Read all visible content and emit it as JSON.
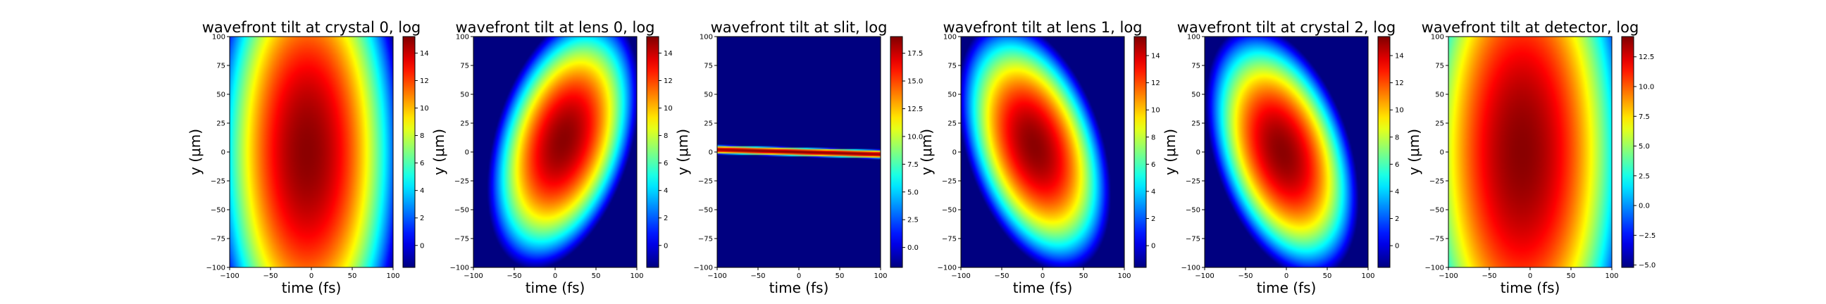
{
  "figure": {
    "colormap": "jet",
    "panels": [
      {
        "title": "wavefront tilt at crystal 0, log",
        "xlabel": "time (fs)",
        "ylabel": "y (μm)",
        "xticks": [
          "−100",
          "−50",
          "0",
          "50",
          "100"
        ],
        "yticks": [
          "100",
          "75",
          "50",
          "25",
          "0",
          "−25",
          "−50",
          "−75",
          "−100"
        ],
        "cb_range": [
          -1.6,
          15.2
        ],
        "cb_ticks": [
          "0",
          "2",
          "4",
          "6",
          "8",
          "10",
          "12",
          "14"
        ]
      },
      {
        "title": "wavefront tilt at lens 0, log",
        "xlabel": "time (fs)",
        "ylabel": "y (μm)",
        "xticks": [
          "−100",
          "−50",
          "0",
          "50",
          "100"
        ],
        "yticks": [
          "100",
          "75",
          "50",
          "25",
          "0",
          "−25",
          "−50",
          "−75",
          "−100"
        ],
        "cb_range": [
          -1.6,
          15.2
        ],
        "cb_ticks": [
          "0",
          "2",
          "4",
          "6",
          "8",
          "10",
          "12",
          "14"
        ]
      },
      {
        "title": "wavefront tilt at slit, log",
        "xlabel": "time (fs)",
        "ylabel": "y (μm)",
        "xticks": [
          "−100",
          "−50",
          "0",
          "50",
          "100"
        ],
        "yticks": [
          "100",
          "75",
          "50",
          "25",
          "0",
          "−25",
          "−50",
          "−75",
          "−100"
        ],
        "cb_range": [
          -1.8,
          19.0
        ],
        "cb_ticks": [
          "0.0",
          "2.5",
          "5.0",
          "7.5",
          "10.0",
          "12.5",
          "15.0",
          "17.5"
        ]
      },
      {
        "title": "wavefront tilt at lens 1, log",
        "xlabel": "time (fs)",
        "ylabel": "y (μm)",
        "xticks": [
          "−100",
          "−50",
          "0",
          "50",
          "100"
        ],
        "yticks": [
          "100",
          "75",
          "50",
          "25",
          "0",
          "−25",
          "−50",
          "−75",
          "−100"
        ],
        "cb_range": [
          -1.6,
          15.4
        ],
        "cb_ticks": [
          "0",
          "2",
          "4",
          "6",
          "8",
          "10",
          "12",
          "14"
        ]
      },
      {
        "title": "wavefront tilt at crystal 2, log",
        "xlabel": "time (fs)",
        "ylabel": "y (μm)",
        "xticks": [
          "−100",
          "−50",
          "0",
          "50",
          "100"
        ],
        "yticks": [
          "100",
          "75",
          "50",
          "25",
          "0",
          "−25",
          "−50",
          "−75",
          "−100"
        ],
        "cb_range": [
          -1.6,
          15.4
        ],
        "cb_ticks": [
          "0",
          "2",
          "4",
          "6",
          "8",
          "10",
          "12",
          "14"
        ]
      },
      {
        "title": "wavefront tilt at detector, log",
        "xlabel": "time (fs)",
        "ylabel": "y (μm)",
        "xticks": [
          "−100",
          "−50",
          "0",
          "50",
          "100"
        ],
        "yticks": [
          "100",
          "75",
          "50",
          "25",
          "0",
          "−25",
          "−50",
          "−75",
          "−100"
        ],
        "cb_range": [
          -5.2,
          14.2
        ],
        "cb_ticks": [
          "−5.0",
          "−2.5",
          "0.0",
          "2.5",
          "5.0",
          "7.5",
          "10.0",
          "12.5"
        ]
      }
    ]
  },
  "chart_data": [
    {
      "type": "heatmap",
      "title": "wavefront tilt at crystal 0, log",
      "xlabel": "time (fs)",
      "ylabel": "y (μm)",
      "xlim": [
        -100,
        100
      ],
      "ylim": [
        -100,
        100
      ],
      "colorbar_range": [
        -1.6,
        15.2
      ],
      "field": {
        "peak": 15.0,
        "center": [
          -5,
          0
        ],
        "sigma_t": 72,
        "sigma_y": 130,
        "tilt": 0.0
      }
    },
    {
      "type": "heatmap",
      "title": "wavefront tilt at lens 0, log",
      "xlabel": "time (fs)",
      "ylabel": "y (μm)",
      "xticks": null,
      "xlim": [
        -100,
        100
      ],
      "ylim": [
        -100,
        100
      ],
      "colorbar_range": [
        -1.6,
        15.2
      ],
      "field": {
        "peak": 15.0,
        "center": [
          10,
          10
        ],
        "sigma_t": 56,
        "sigma_y": 62,
        "tilt": -0.45
      }
    },
    {
      "type": "heatmap",
      "title": "wavefront tilt at slit, log",
      "xlabel": "time (fs)",
      "ylabel": "y (μm)",
      "xlim": [
        -100,
        100
      ],
      "ylim": [
        -100,
        100
      ],
      "colorbar_range": [
        -1.8,
        19.0
      ],
      "field": {
        "peak": 19.0,
        "center": [
          0,
          0
        ],
        "sigma_t": 400,
        "sigma_y": 2.2,
        "tilt": 0.02
      }
    },
    {
      "type": "heatmap",
      "title": "wavefront tilt at lens 1, log",
      "xlabel": "time (fs)",
      "ylabel": "y (μm)",
      "xlim": [
        -100,
        100
      ],
      "ylim": [
        -100,
        100
      ],
      "colorbar_range": [
        -1.6,
        15.4
      ],
      "field": {
        "peak": 15.2,
        "center": [
          -10,
          5
        ],
        "sigma_t": 56,
        "sigma_y": 60,
        "tilt": 0.45
      }
    },
    {
      "type": "heatmap",
      "title": "wavefront tilt at crystal 2, log",
      "xlabel": "time (fs)",
      "ylabel": "y (μm)",
      "xlim": [
        -100,
        100
      ],
      "ylim": [
        -100,
        100
      ],
      "colorbar_range": [
        -1.6,
        15.4
      ],
      "field": {
        "peak": 15.2,
        "center": [
          -5,
          0
        ],
        "sigma_t": 56,
        "sigma_y": 60,
        "tilt": 0.45
      }
    },
    {
      "type": "heatmap",
      "title": "wavefront tilt at detector, log",
      "xlabel": "time (fs)",
      "ylabel": "y (μm)",
      "xlim": [
        -100,
        100
      ],
      "ylim": [
        -100,
        100
      ],
      "colorbar_range": [
        -5.2,
        14.2
      ],
      "field": {
        "peak": 14.0,
        "center": [
          -10,
          0
        ],
        "sigma_t": 78,
        "sigma_y": 140,
        "tilt": 0.0
      }
    }
  ]
}
